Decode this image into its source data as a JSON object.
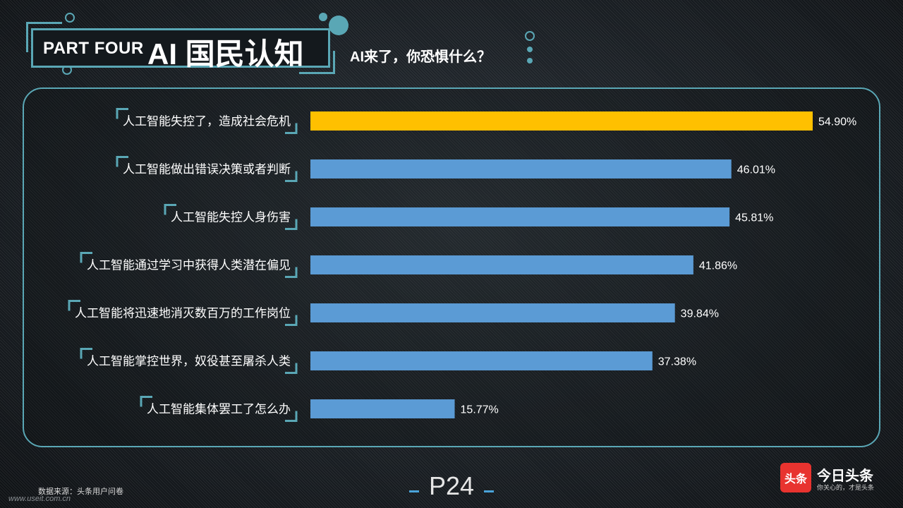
{
  "header": {
    "part_label": "PART FOUR",
    "title": "AI 国民认知",
    "subtitle": "AI来了，你恐惧什么？"
  },
  "colors": {
    "accent": "#5aa7b5",
    "bar_default": "#5b9bd5",
    "bar_highlight": "#ffc000",
    "background": "#1a1f24"
  },
  "chart_data": {
    "type": "bar",
    "orientation": "horizontal",
    "categories": [
      "人工智能失控了，造成社会危机",
      "人工智能做出错误决策或者判断",
      "人工智能失控人身伤害",
      "人工智能通过学习中获得人类潜在偏见",
      "人工智能将迅速地消灭数百万的工作岗位",
      "人工智能掌控世界，奴役甚至屠杀人类",
      "人工智能集体罢工了怎么办"
    ],
    "values": [
      54.9,
      46.01,
      45.81,
      41.86,
      39.84,
      37.38,
      15.77
    ],
    "value_labels": [
      "54.90%",
      "46.01%",
      "45.81%",
      "41.86%",
      "39.84%",
      "37.38%",
      "15.77%"
    ],
    "highlight_index": 0,
    "xlim": [
      0,
      54.9
    ],
    "grid": false,
    "legend": "none"
  },
  "footer": {
    "source": "数据来源：头条用户问卷",
    "watermark": "www.useit.com.cn",
    "page": "P24",
    "logo_badge": "头条",
    "logo_name": "今日头条",
    "logo_slogan": "你关心的，才是头条"
  }
}
